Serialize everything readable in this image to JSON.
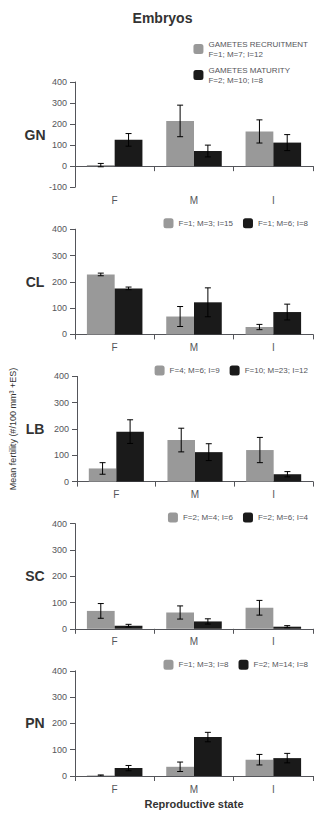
{
  "chart_data": [
    {
      "type": "bar",
      "title": "Embryos",
      "annotation": "GN",
      "categories": [
        "F",
        "M",
        "I"
      ],
      "series": [
        {
          "name": "GAMETES RECRUITMENT\nF=1; M=7; I=12",
          "color": "#999999",
          "values": [
            5,
            215,
            165
          ],
          "errors": [
            8,
            75,
            55
          ]
        },
        {
          "name": "GAMETES MATURITY\nF=2; M=10; I=8",
          "color": "#1a1a1a",
          "values": [
            125,
            72,
            112
          ],
          "errors": [
            30,
            28,
            38
          ]
        }
      ],
      "ylim": [
        -100,
        400
      ],
      "yticks": [
        -100,
        0,
        100,
        200,
        300,
        400
      ],
      "grid": false,
      "legend": "upper right"
    },
    {
      "type": "bar",
      "annotation": "CL",
      "categories": [
        "F",
        "M",
        "I"
      ],
      "series": [
        {
          "name": "F=1; M=3; I=15",
          "color": "#999999",
          "values": [
            228,
            68,
            28
          ],
          "errors": [
            5,
            38,
            10
          ]
        },
        {
          "name": "F=1; M=6; I=8",
          "color": "#1a1a1a",
          "values": [
            175,
            122,
            85
          ],
          "errors": [
            5,
            55,
            30
          ]
        }
      ],
      "ylim": [
        0,
        400
      ],
      "yticks": [
        0,
        100,
        200,
        300,
        400
      ],
      "grid": false,
      "legend": "upper right"
    },
    {
      "type": "bar",
      "annotation": "LB",
      "ylabel": "Mean fertility (#/100 mm³ +ES)",
      "categories": [
        "F",
        "M",
        "I"
      ],
      "series": [
        {
          "name": "F=4; M=6; I=9",
          "color": "#999999",
          "values": [
            50,
            158,
            120
          ],
          "errors": [
            22,
            45,
            48
          ]
        },
        {
          "name": "F=10; M=23; I=12",
          "color": "#1a1a1a",
          "values": [
            190,
            112,
            28
          ],
          "errors": [
            45,
            32,
            10
          ]
        }
      ],
      "ylim": [
        0,
        400
      ],
      "yticks": [
        0,
        100,
        200,
        300,
        400
      ],
      "grid": false,
      "legend": "upper right"
    },
    {
      "type": "bar",
      "annotation": "SC",
      "categories": [
        "F",
        "M",
        "I"
      ],
      "series": [
        {
          "name": "F=2; M=4; I=6",
          "color": "#999999",
          "values": [
            68,
            62,
            80
          ],
          "errors": [
            28,
            25,
            28
          ]
        },
        {
          "name": "F=2; M=6; I=4",
          "color": "#1a1a1a",
          "values": [
            12,
            28,
            8
          ],
          "errors": [
            5,
            10,
            4
          ]
        }
      ],
      "ylim": [
        0,
        400
      ],
      "yticks": [
        0,
        100,
        200,
        300,
        400
      ],
      "grid": false,
      "legend": "upper right"
    },
    {
      "type": "bar",
      "annotation": "PN",
      "xlabel": "Reproductive state",
      "categories": [
        "F",
        "M",
        "I"
      ],
      "series": [
        {
          "name": "F=1; M=3; I=8",
          "color": "#999999",
          "values": [
            2,
            35,
            62
          ],
          "errors": [
            2,
            18,
            20
          ]
        },
        {
          "name": "F=2; M=14; I=8",
          "color": "#1a1a1a",
          "values": [
            30,
            148,
            68
          ],
          "errors": [
            10,
            18,
            18
          ]
        }
      ],
      "ylim": [
        0,
        400
      ],
      "yticks": [
        0,
        100,
        200,
        300,
        400
      ],
      "grid": false,
      "legend": "upper right"
    }
  ]
}
